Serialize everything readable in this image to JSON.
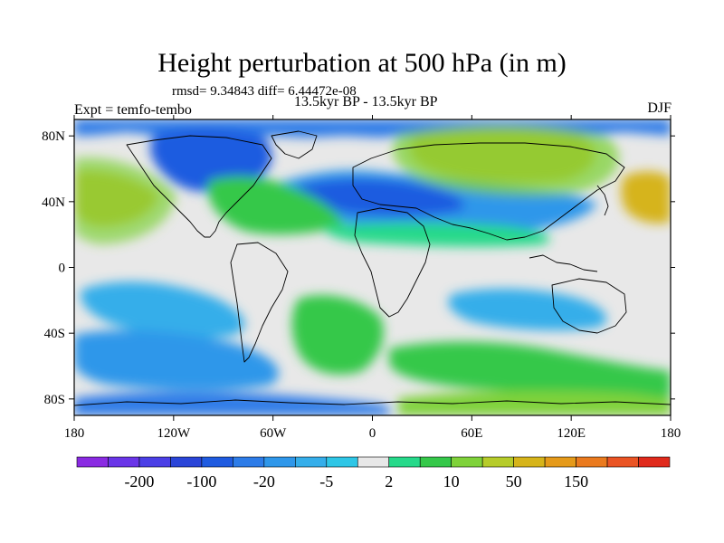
{
  "title": "Height perturbation at 500 hPa (in m)",
  "stats_text": "rmsd= 9.34843 diff= 6.44472e-08",
  "period_text": "13.5kyr BP - 13.5kyr BP",
  "experiment_text": "Expt = temfo-tembo",
  "season_text": "DJF",
  "map": {
    "projection": "cylindrical equidistant",
    "lon_range": [
      -180,
      180
    ],
    "lat_range": [
      -90,
      90
    ],
    "x_ticks": [
      {
        "lon": -180,
        "label": "180"
      },
      {
        "lon": -120,
        "label": "120W"
      },
      {
        "lon": -60,
        "label": "60W"
      },
      {
        "lon": 0,
        "label": "0"
      },
      {
        "lon": 60,
        "label": "60E"
      },
      {
        "lon": 120,
        "label": "120E"
      },
      {
        "lon": 180,
        "label": "180"
      }
    ],
    "y_ticks": [
      {
        "lat": 80,
        "label": "80N"
      },
      {
        "lat": 40,
        "label": "40N"
      },
      {
        "lat": 0,
        "label": "0"
      },
      {
        "lat": -40,
        "label": "40S"
      },
      {
        "lat": -80,
        "label": "80S"
      }
    ],
    "background_color": "#e8e8e8",
    "coastline_color": "#000000"
  },
  "colorbar": {
    "colors": [
      "#8a2be2",
      "#6a35e8",
      "#4b3fe6",
      "#2a45d8",
      "#1f5be0",
      "#2d7ce8",
      "#2f97ea",
      "#35aeea",
      "#2ec6e6",
      "#e8e8e8",
      "#26d98a",
      "#35c84a",
      "#7fd23a",
      "#b6cc2a",
      "#d6b41a",
      "#e59a1a",
      "#ea7a1e",
      "#ea5424",
      "#e02a1c"
    ],
    "labels": [
      {
        "after_index": 1,
        "text": "-200"
      },
      {
        "after_index": 3,
        "text": "-100"
      },
      {
        "after_index": 5,
        "text": "-20"
      },
      {
        "after_index": 7,
        "text": "-5"
      },
      {
        "after_index": 9,
        "text": "2"
      },
      {
        "after_index": 11,
        "text": "10"
      },
      {
        "after_index": 13,
        "text": "50"
      },
      {
        "after_index": 15,
        "text": "150"
      }
    ]
  }
}
